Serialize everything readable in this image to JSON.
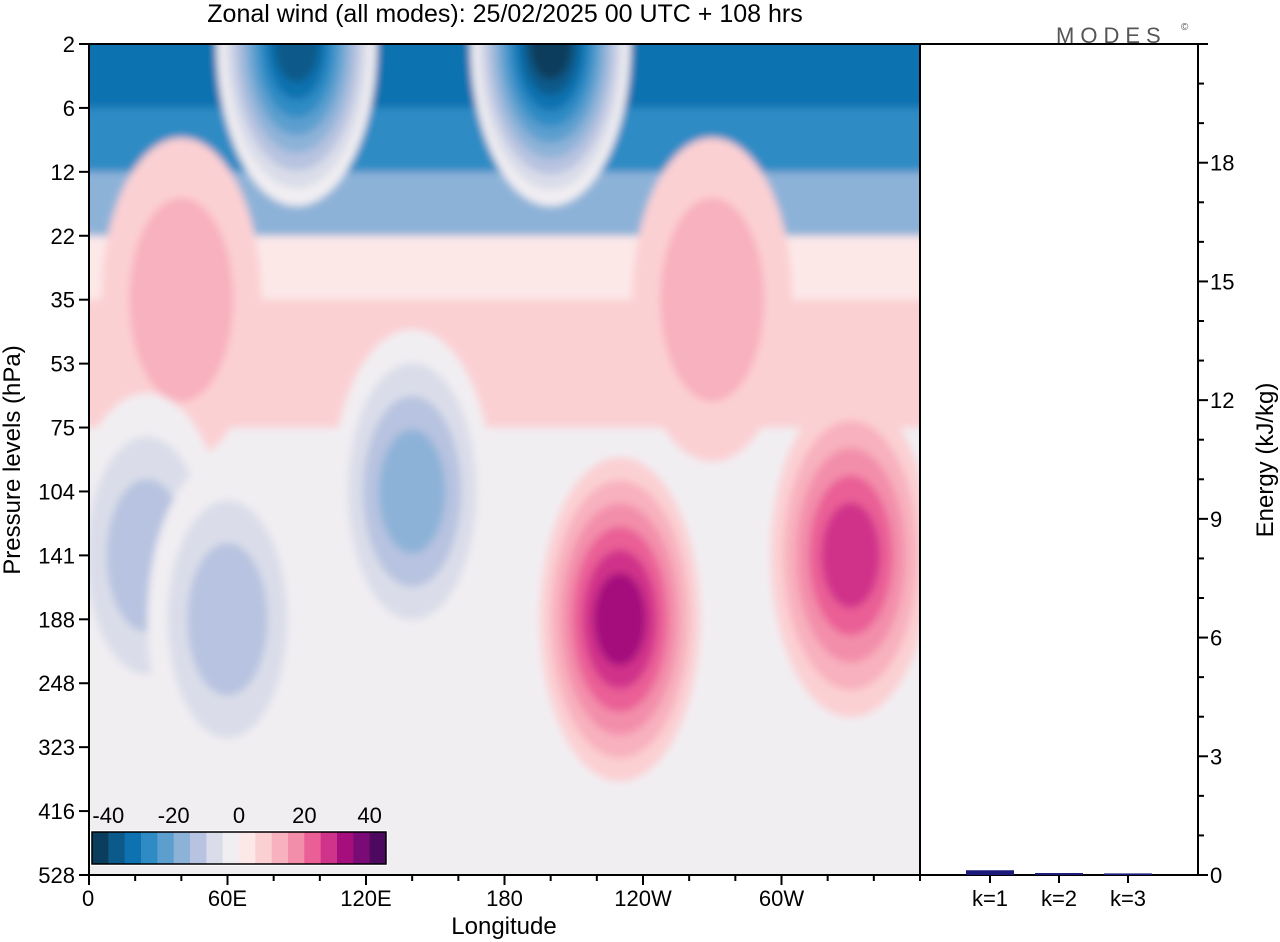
{
  "title": "Zonal wind (all modes):  25/02/2025  00 UTC  + 108 hrs",
  "logo": "MODES",
  "logo_mark": "©",
  "chart_data": [
    {
      "type": "heatmap",
      "xlabel": "Longitude",
      "ylabel": "Pressure levels (hPa)",
      "x_ticks": [
        "0",
        "60E",
        "120E",
        "180",
        "120W",
        "60W"
      ],
      "x_tick_positions_deg": [
        0,
        60,
        120,
        180,
        240,
        300
      ],
      "x_range_deg": [
        0,
        360
      ],
      "y_ticks": [
        "2",
        "6",
        "12",
        "22",
        "35",
        "53",
        "75",
        "104",
        "141",
        "188",
        "248",
        "323",
        "416",
        "528"
      ],
      "colorbar": {
        "tick_labels": [
          "-40",
          "-20",
          "0",
          "20",
          "40"
        ],
        "tick_values": [
          -40,
          -20,
          0,
          20,
          40
        ],
        "range": [
          -45,
          45
        ],
        "colors": [
          "#0b3d5c",
          "#0c5a8a",
          "#0e72b0",
          "#2f8bc4",
          "#5c9fcf",
          "#8db2d8",
          "#b7c3e0",
          "#dadde9",
          "#f1eef2",
          "#fde8e8",
          "#fbd0d3",
          "#f8b1be",
          "#f38eaa",
          "#ea5f96",
          "#d0338a",
          "#a50f7d",
          "#7a0a76",
          "#4d0860"
        ]
      },
      "features": [
        {
          "lon": 90,
          "level": "2",
          "value": -40
        },
        {
          "lon": 200,
          "level": "2",
          "value": -45
        },
        {
          "lon": 40,
          "level": "35",
          "value": 10
        },
        {
          "lon": 270,
          "level": "35",
          "value": 10
        },
        {
          "lon": 25,
          "level": "141",
          "value": -15
        },
        {
          "lon": 140,
          "level": "104",
          "value": -20
        },
        {
          "lon": 230,
          "level": "188",
          "value": 30
        },
        {
          "lon": 330,
          "level": "141",
          "value": 25
        },
        {
          "lon": 60,
          "level": "188",
          "value": -15
        }
      ]
    },
    {
      "type": "bar",
      "ylabel": "Energy (kJ/kg)",
      "categories": [
        "k=1",
        "k=2",
        "k=3"
      ],
      "values": [
        0.12,
        0.05,
        0.04
      ],
      "ylim": [
        0,
        21
      ],
      "y_ticks": [
        0,
        3,
        6,
        9,
        12,
        15,
        18
      ],
      "bar_color": "#1a1a7a"
    }
  ]
}
